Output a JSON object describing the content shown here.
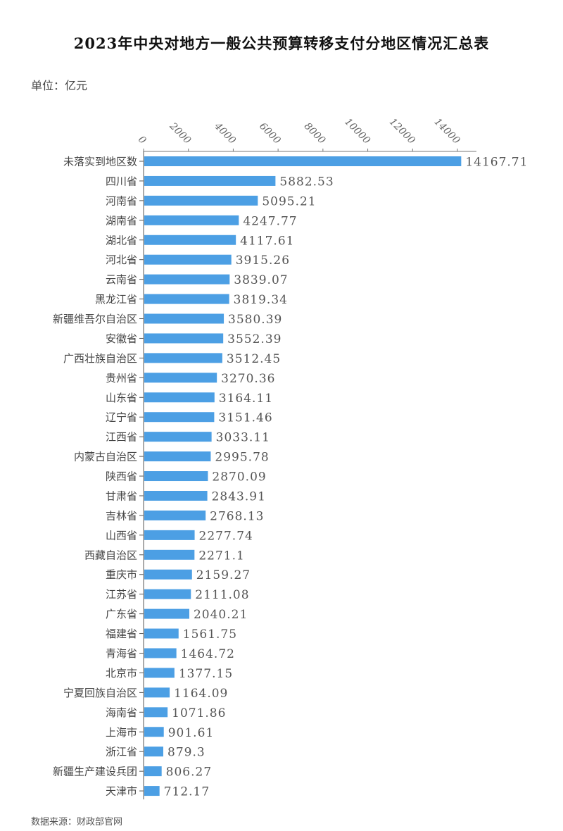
{
  "chart_data": {
    "type": "bar",
    "orientation": "horizontal",
    "title": "2023年中央对地方一般公共预算转移支付分地区情况汇总表",
    "unit_label": "单位：亿元",
    "source": "数据来源：财政部官网",
    "xlim": [
      0,
      14000
    ],
    "xticks": [
      "0",
      "2000",
      "4000",
      "6000",
      "8000",
      "10000",
      "12000",
      "14000"
    ],
    "bar_color": "#4c9fe4",
    "categories": [
      "未落实到地区数",
      "四川省",
      "河南省",
      "湖南省",
      "湖北省",
      "河北省",
      "云南省",
      "黑龙江省",
      "新疆维吾尔自治区",
      "安徽省",
      "广西壮族自治区",
      "贵州省",
      "山东省",
      "辽宁省",
      "江西省",
      "内蒙古自治区",
      "陕西省",
      "甘肃省",
      "吉林省",
      "山西省",
      "西藏自治区",
      "重庆市",
      "江苏省",
      "广东省",
      "福建省",
      "青海省",
      "北京市",
      "宁夏回族自治区",
      "海南省",
      "上海市",
      "浙江省",
      "新疆生产建设兵团",
      "天津市"
    ],
    "values": [
      14167.71,
      5882.53,
      5095.21,
      4247.77,
      4117.61,
      3915.26,
      3839.07,
      3819.34,
      3580.39,
      3552.39,
      3512.45,
      3270.36,
      3164.11,
      3151.46,
      3033.11,
      2995.78,
      2870.09,
      2843.91,
      2768.13,
      2277.74,
      2271.1,
      2159.27,
      2111.08,
      2040.21,
      1561.75,
      1464.72,
      1377.15,
      1164.09,
      1071.86,
      901.61,
      879.3,
      806.27,
      712.17
    ]
  }
}
